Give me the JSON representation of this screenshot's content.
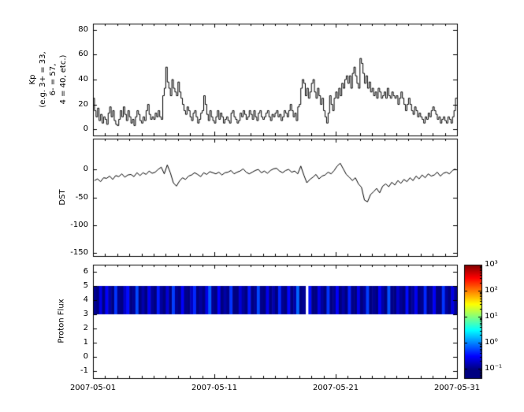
{
  "figure": {
    "background": "#ffffff",
    "line_color": "#000000",
    "nodata_color": "#ffffff"
  },
  "xaxis": {
    "tick_labels": [
      "2007-05-01",
      "2007-05-11",
      "2007-05-21",
      "2007-05-31"
    ],
    "tick_days": [
      0,
      10,
      20,
      30
    ],
    "span_days": 30
  },
  "colorbar": {
    "colormap": "jet",
    "scale": "log",
    "tick_labels": [
      "10³",
      "10²",
      "10¹",
      "10⁰",
      "10⁻¹"
    ],
    "tick_exponents": [
      3,
      2,
      1,
      0,
      -1
    ],
    "exp_min": -1.35,
    "exp_max": 3
  },
  "chart_data": [
    {
      "type": "line",
      "style": "step",
      "ylabel": "Kp\n(e.g. 3+ = 33,\n6- = 57,\n4 = 40, etc.)",
      "x_start": "2007-05-01",
      "x_end": "2007-05-31",
      "samples_per_day": 8,
      "ylim": [
        -5,
        85
      ],
      "yticks": [
        80,
        60,
        40,
        20,
        0
      ],
      "values": [
        25,
        15,
        10,
        17,
        7,
        12,
        5,
        10,
        8,
        4,
        13,
        18,
        10,
        15,
        7,
        4,
        3,
        8,
        15,
        10,
        18,
        12,
        7,
        15,
        10,
        5,
        8,
        3,
        10,
        15,
        12,
        7,
        5,
        10,
        7,
        15,
        20,
        12,
        8,
        10,
        8,
        13,
        10,
        15,
        10,
        8,
        27,
        33,
        50,
        38,
        33,
        27,
        40,
        33,
        30,
        27,
        38,
        30,
        25,
        20,
        15,
        12,
        18,
        15,
        10,
        7,
        13,
        15,
        10,
        5,
        8,
        13,
        15,
        27,
        20,
        12,
        7,
        15,
        10,
        7,
        5,
        10,
        15,
        8,
        13,
        10,
        5,
        8,
        10,
        7,
        5,
        13,
        15,
        10,
        8,
        5,
        7,
        13,
        10,
        15,
        12,
        8,
        10,
        15,
        12,
        8,
        15,
        10,
        7,
        13,
        15,
        10,
        8,
        10,
        13,
        15,
        10,
        7,
        12,
        10,
        13,
        15,
        10,
        12,
        7,
        10,
        15,
        13,
        10,
        15,
        20,
        15,
        10,
        13,
        7,
        18,
        20,
        33,
        40,
        37,
        27,
        33,
        25,
        30,
        37,
        40,
        30,
        25,
        33,
        27,
        20,
        25,
        15,
        10,
        5,
        13,
        27,
        20,
        15,
        25,
        30,
        25,
        33,
        27,
        37,
        33,
        40,
        43,
        37,
        43,
        33,
        45,
        50,
        43,
        37,
        33,
        57,
        53,
        45,
        37,
        43,
        33,
        38,
        30,
        33,
        27,
        30,
        25,
        33,
        30,
        25,
        27,
        30,
        25,
        33,
        27,
        25,
        30,
        27,
        25,
        27,
        20,
        25,
        30,
        25,
        20,
        15,
        20,
        25,
        20,
        15,
        12,
        18,
        15,
        10,
        13,
        10,
        8,
        5,
        10,
        8,
        13,
        10,
        15,
        18,
        15,
        12,
        8,
        10,
        5,
        8,
        10,
        7,
        5,
        10,
        8,
        5,
        10,
        15,
        25
      ]
    },
    {
      "type": "line",
      "style": "line",
      "ylabel": "DST",
      "x_start": "2007-05-01",
      "x_end": "2007-05-31",
      "samples_per_day": 4,
      "ylim": [
        -155,
        55
      ],
      "yticks": [
        0,
        -50,
        -100,
        -150
      ],
      "values": [
        -20,
        -17,
        -22,
        -15,
        -16,
        -12,
        -18,
        -11,
        -13,
        -8,
        -14,
        -10,
        -9,
        -13,
        -6,
        -11,
        -6,
        -9,
        -3,
        -7,
        -5,
        0,
        4,
        -8,
        8,
        -6,
        -24,
        -30,
        -21,
        -15,
        -18,
        -12,
        -10,
        -6,
        -9,
        -13,
        -6,
        -9,
        -4,
        -6,
        -8,
        -5,
        -10,
        -6,
        -5,
        -2,
        -8,
        -5,
        -3,
        1,
        -5,
        -8,
        -5,
        -2,
        0,
        -6,
        -3,
        -7,
        -2,
        1,
        2,
        -3,
        -6,
        -2,
        0,
        -5,
        -3,
        -8,
        6,
        -10,
        -24,
        -18,
        -14,
        -9,
        -17,
        -12,
        -10,
        -5,
        -8,
        -2,
        6,
        11,
        1,
        -9,
        -14,
        -20,
        -15,
        -26,
        -32,
        -55,
        -58,
        -45,
        -40,
        -34,
        -42,
        -30,
        -26,
        -31,
        -23,
        -28,
        -20,
        -25,
        -18,
        -22,
        -15,
        -20,
        -12,
        -17,
        -10,
        -15,
        -8,
        -12,
        -10,
        -5,
        -12,
        -7,
        -5,
        -8,
        -2,
        1
      ]
    },
    {
      "type": "heatmap",
      "ylabel": "Proton Flux",
      "x_start": "2007-05-01",
      "x_end": "2007-05-31",
      "samples_per_day": 4,
      "ylim": [
        -1.5,
        6.5
      ],
      "yticks": [
        6,
        5,
        4,
        3,
        2,
        1,
        0,
        -1
      ],
      "band_y": [
        3,
        5
      ],
      "scale": "log",
      "clim": [
        0.1,
        1000
      ],
      "values": [
        0.12,
        0.09,
        0.25,
        0.1,
        0.3,
        0.14,
        0.09,
        0.5,
        0.11,
        0.08,
        0.2,
        0.35,
        0.1,
        0.12,
        0.6,
        0.09,
        0.15,
        0.1,
        0.28,
        0.12,
        0.09,
        0.4,
        0.13,
        0.1,
        0.22,
        0.08,
        0.55,
        0.12,
        0.1,
        0.3,
        0.11,
        0.09,
        0.18,
        0.45,
        0.1,
        0.13,
        0.08,
        0.25,
        0.7,
        0.12,
        0.1,
        0.32,
        0.09,
        0.14,
        0.11,
        0.5,
        0.1,
        0.08,
        0.22,
        0.13,
        0.09,
        0.38,
        0.1,
        0.12,
        0.6,
        0.11,
        0.09,
        0.27,
        0.1,
        0.15,
        0.08,
        0.45,
        0.12,
        0.1,
        0.33,
        0.09,
        0.14,
        0.8,
        0.1,
        0.12,
        null,
        0.35,
        0.1,
        0.09,
        0.25,
        0.13,
        0.1,
        0.5,
        0.08,
        0.12,
        0.3,
        0.1,
        0.14,
        0.09,
        0.42,
        0.11,
        0.1,
        0.26,
        0.08,
        0.13,
        0.55,
        0.1,
        0.12,
        0.09,
        0.3,
        0.14,
        0.1,
        0.65,
        0.11,
        0.08,
        0.2,
        0.12,
        0.1,
        0.35,
        0.09,
        0.13,
        0.28,
        0.1,
        0.11,
        0.45,
        0.09,
        0.12,
        0.3,
        0.1,
        0.08,
        0.5,
        0.13,
        0.1,
        0.25,
        0.12
      ]
    }
  ]
}
